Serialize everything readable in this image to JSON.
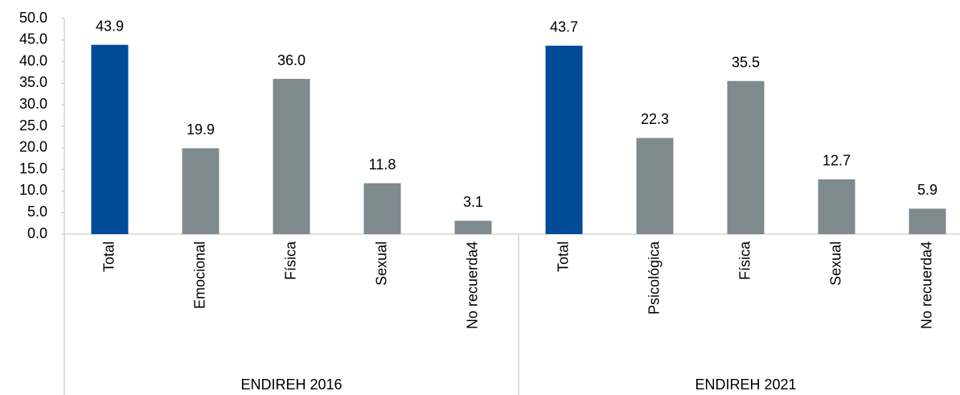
{
  "chart_data": {
    "type": "bar",
    "categories": [
      "Total",
      "Emocional",
      "Física",
      "Sexual",
      "No recuerda4",
      "Total",
      "Psicológica",
      "Física",
      "Sexual",
      "No recuerda4"
    ],
    "groups": [
      "ENDIREH 2016",
      "ENDIREH 2021"
    ],
    "values": [
      43.9,
      19.9,
      36.0,
      11.8,
      3.1,
      43.7,
      22.3,
      35.5,
      12.7,
      5.9
    ],
    "value_labels": [
      "43.9",
      "19.9",
      "36.0",
      "11.8",
      "3.1",
      "43.7",
      "22.3",
      "35.5",
      "12.7",
      "5.9"
    ],
    "colors": [
      "#004b97",
      "#7f8a8f",
      "#7f8a8f",
      "#7f8a8f",
      "#7f8a8f",
      "#004b97",
      "#7f8a8f",
      "#7f8a8f",
      "#7f8a8f",
      "#7f8a8f"
    ],
    "ylim": [
      0,
      50
    ],
    "yticks": [
      {
        "value": 0,
        "label": "0.0"
      },
      {
        "value": 5,
        "label": "5.0"
      },
      {
        "value": 10,
        "label": "10.0"
      },
      {
        "value": 15,
        "label": "15.0"
      },
      {
        "value": 20,
        "label": "20.0"
      },
      {
        "value": 25,
        "label": "25.0"
      },
      {
        "value": 30,
        "label": "30.0"
      },
      {
        "value": 35,
        "label": "35.0"
      },
      {
        "value": 40,
        "label": "40.0"
      },
      {
        "value": 45,
        "label": "45.0"
      },
      {
        "value": 50,
        "label": "50.0"
      }
    ],
    "grid": false
  }
}
